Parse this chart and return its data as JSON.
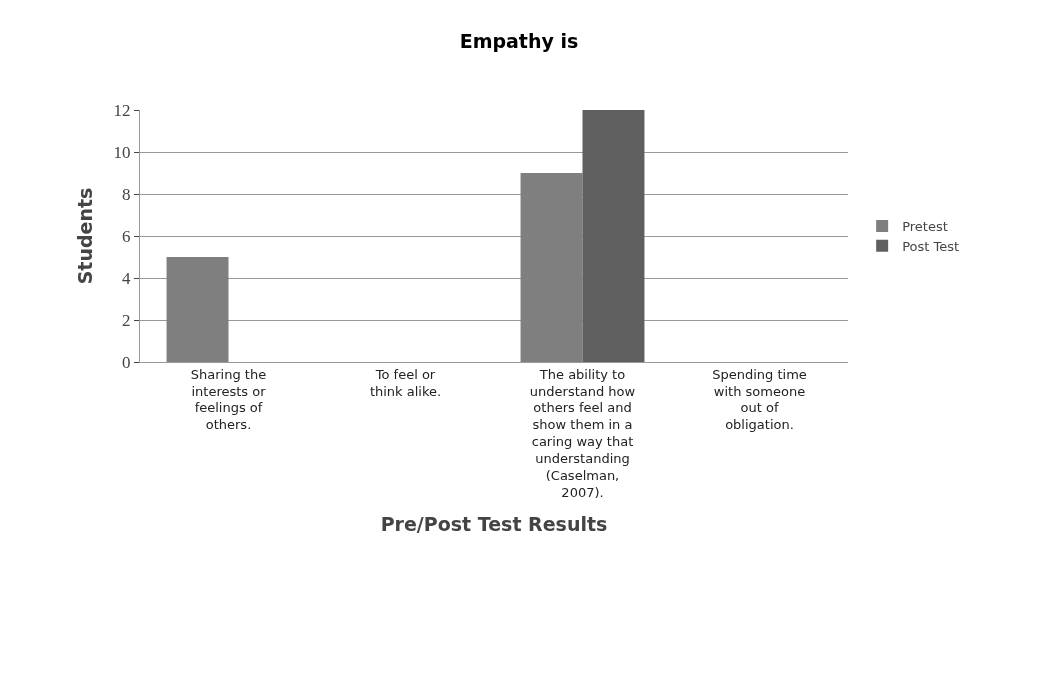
{
  "chart_data": {
    "type": "bar",
    "title": "Empathy is",
    "xlabel": "Pre/Post Test Results",
    "ylabel": "Students",
    "categories": [
      "Sharing the interests or feelings of others.",
      "To feel or think alike.",
      "The ability to understand how others feel and show them in a caring way that understanding (Caselman, 2007).",
      "Spending time with someone out of obligation."
    ],
    "series": [
      {
        "name": "Pretest",
        "color": "#7f7f7f",
        "values": [
          5,
          0,
          9,
          0
        ]
      },
      {
        "name": "Post Test",
        "color": "#5f5f5f",
        "values": [
          0,
          0,
          12,
          0
        ]
      }
    ],
    "ylim": [
      0,
      12
    ],
    "yticks": [
      0,
      2,
      4,
      6,
      8,
      10,
      12
    ],
    "grid": "y",
    "legend": "right"
  }
}
